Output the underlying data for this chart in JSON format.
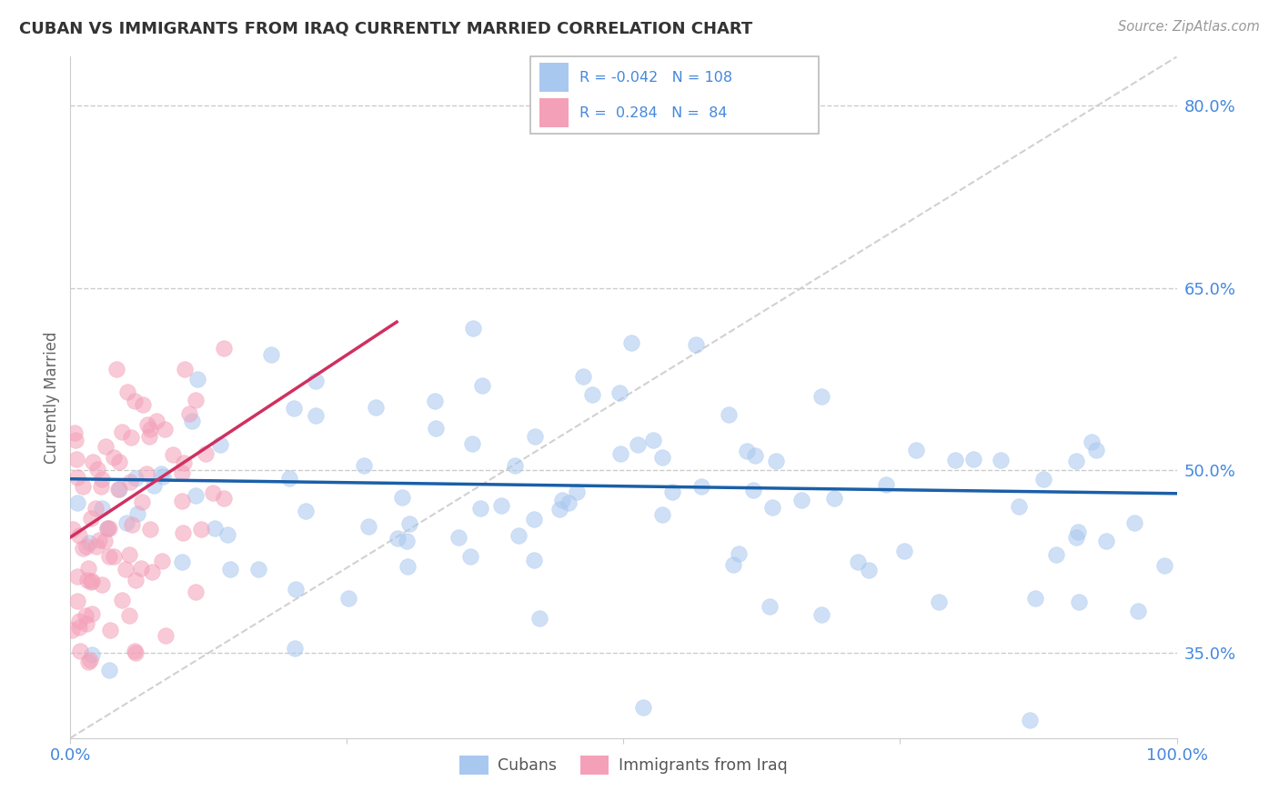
{
  "title": "CUBAN VS IMMIGRANTS FROM IRAQ CURRENTLY MARRIED CORRELATION CHART",
  "source_text": "Source: ZipAtlas.com",
  "ylabel": "Currently Married",
  "xlim": [
    0.0,
    1.0
  ],
  "ylim": [
    0.28,
    0.84
  ],
  "yticks": [
    0.35,
    0.5,
    0.65,
    0.8
  ],
  "ytick_labels": [
    "35.0%",
    "50.0%",
    "65.0%",
    "80.0%"
  ],
  "xticks": [
    0.0,
    0.25,
    0.5,
    0.75,
    1.0
  ],
  "xtick_labels": [
    "0.0%",
    "",
    "",
    "",
    "100.0%"
  ],
  "blue_R": -0.042,
  "blue_N": 108,
  "pink_R": 0.284,
  "pink_N": 84,
  "blue_color": "#a8c8f0",
  "pink_color": "#f4a0b8",
  "blue_line_color": "#1a5fa8",
  "pink_line_color": "#d03060",
  "diag_line_color": "#cccccc",
  "background_color": "#ffffff",
  "grid_color": "#cccccc",
  "title_color": "#333333",
  "source_color": "#999999",
  "legend_blue_color": "#a8c8f0",
  "legend_pink_color": "#f4a0b8",
  "tick_color": "#4488dd",
  "ylabel_color": "#666666"
}
